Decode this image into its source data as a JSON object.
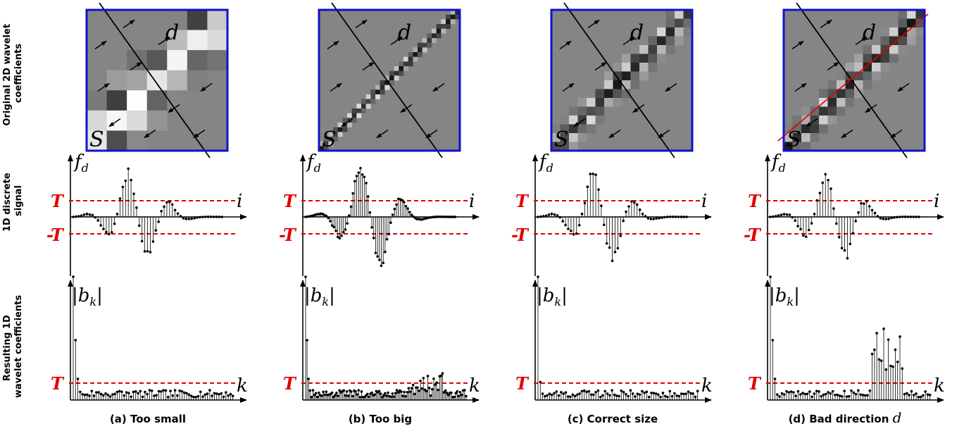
{
  "row_labels": {
    "row1": [
      "Original 2D wavelet",
      "coefficients"
    ],
    "row2": [
      "1D discrete",
      "signal"
    ],
    "row3": [
      "Resulting 1D",
      "wavelet coefficients"
    ]
  },
  "symbols": {
    "direction": "d",
    "support": "S",
    "signal": "f",
    "signal_sub": "d",
    "index_i": "i",
    "coeff": "|b",
    "coeff_sub": "k",
    "coeff_close": "|",
    "index_k": "k",
    "threshold": "T",
    "neg_threshold": "-T"
  },
  "colors": {
    "panel_border": "#1010d0",
    "threshold": "#e00000",
    "background_gray": "#858585"
  },
  "panels": [
    {
      "id": "a",
      "caption": "(a) Too small",
      "caption_math": "",
      "grid_cells": 7,
      "band_width": 1,
      "red_line": false
    },
    {
      "id": "b",
      "caption": "(b) Too big",
      "caption_math": "",
      "grid_cells": 30,
      "band_width": 1,
      "red_line": false
    },
    {
      "id": "c",
      "caption": "(c) Correct size",
      "caption_math": "",
      "grid_cells": 16,
      "band_width": 1,
      "red_line": false
    },
    {
      "id": "d",
      "caption": "(d) Bad direction ",
      "caption_math": "d",
      "grid_cells": 16,
      "band_width": 1,
      "red_line": true
    }
  ]
}
